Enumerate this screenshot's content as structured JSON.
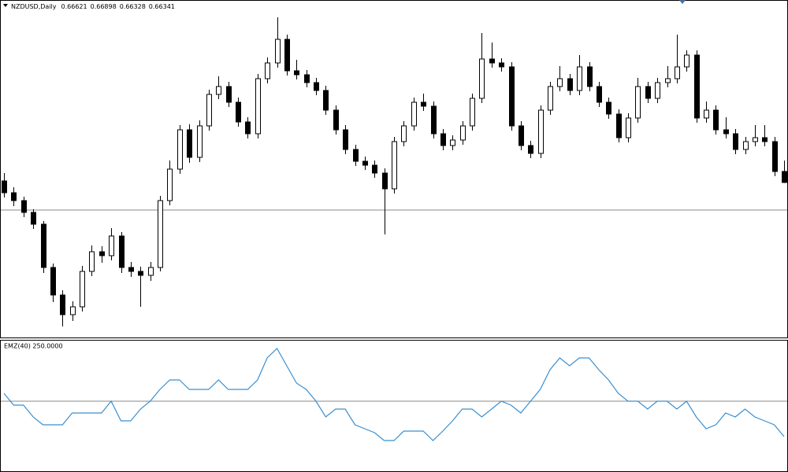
{
  "chart_data": [
    {
      "type": "candlestick",
      "title": "NZDUSD,Daily",
      "up_color": "#ffffff",
      "down_color": "#000000",
      "edge_color": "#000000",
      "ylim": [
        0.6238,
        0.707
      ],
      "hline": 0.6564,
      "ohlc": [
        [
          0.6638,
          0.6658,
          0.6596,
          0.6608
        ],
        [
          0.6608,
          0.6622,
          0.6574,
          0.6588
        ],
        [
          0.6588,
          0.6598,
          0.6546,
          0.6558
        ],
        [
          0.6558,
          0.6566,
          0.6516,
          0.6528
        ],
        [
          0.6528,
          0.6536,
          0.6404,
          0.6418
        ],
        [
          0.6418,
          0.6428,
          0.633,
          0.6348
        ],
        [
          0.6348,
          0.636,
          0.6268,
          0.6298
        ],
        [
          0.6298,
          0.6332,
          0.6282,
          0.6318
        ],
        [
          0.6318,
          0.6422,
          0.6306,
          0.6408
        ],
        [
          0.6408,
          0.6474,
          0.6396,
          0.6458
        ],
        [
          0.6458,
          0.6472,
          0.643,
          0.6448
        ],
        [
          0.6448,
          0.6518,
          0.6436,
          0.6498
        ],
        [
          0.6498,
          0.6508,
          0.6404,
          0.6418
        ],
        [
          0.6418,
          0.6432,
          0.6394,
          0.6408
        ],
        [
          0.6408,
          0.642,
          0.6318,
          0.6398
        ],
        [
          0.6398,
          0.6432,
          0.6384,
          0.6418
        ],
        [
          0.6418,
          0.66,
          0.6408,
          0.6588
        ],
        [
          0.6588,
          0.669,
          0.6576,
          0.6668
        ],
        [
          0.6668,
          0.678,
          0.6656,
          0.6768
        ],
        [
          0.6768,
          0.6782,
          0.6684,
          0.6698
        ],
        [
          0.6698,
          0.6792,
          0.6686,
          0.6778
        ],
        [
          0.6778,
          0.687,
          0.6766,
          0.6858
        ],
        [
          0.6858,
          0.6904,
          0.6846,
          0.6878
        ],
        [
          0.6878,
          0.689,
          0.6826,
          0.6838
        ],
        [
          0.6838,
          0.685,
          0.6776,
          0.6788
        ],
        [
          0.6788,
          0.68,
          0.6746,
          0.6758
        ],
        [
          0.6758,
          0.691,
          0.6746,
          0.6898
        ],
        [
          0.6898,
          0.6952,
          0.6886,
          0.6938
        ],
        [
          0.6938,
          0.7054,
          0.6926,
          0.6998
        ],
        [
          0.6998,
          0.701,
          0.6906,
          0.6918
        ],
        [
          0.6918,
          0.6946,
          0.6896,
          0.6908
        ],
        [
          0.6908,
          0.692,
          0.6876,
          0.6888
        ],
        [
          0.6888,
          0.69,
          0.6856,
          0.6868
        ],
        [
          0.6868,
          0.688,
          0.6806,
          0.6818
        ],
        [
          0.6818,
          0.683,
          0.6756,
          0.6768
        ],
        [
          0.6768,
          0.678,
          0.6706,
          0.6718
        ],
        [
          0.6718,
          0.673,
          0.6676,
          0.6688
        ],
        [
          0.6688,
          0.67,
          0.6666,
          0.6678
        ],
        [
          0.6678,
          0.669,
          0.6646,
          0.6658
        ],
        [
          0.6658,
          0.667,
          0.6502,
          0.6618
        ],
        [
          0.6618,
          0.675,
          0.6606,
          0.6738
        ],
        [
          0.6738,
          0.679,
          0.6726,
          0.6778
        ],
        [
          0.6778,
          0.685,
          0.6766,
          0.6838
        ],
        [
          0.6838,
          0.686,
          0.6816,
          0.6828
        ],
        [
          0.6828,
          0.684,
          0.6746,
          0.6758
        ],
        [
          0.6758,
          0.677,
          0.6716,
          0.6728
        ],
        [
          0.6728,
          0.6754,
          0.6716,
          0.6742
        ],
        [
          0.6742,
          0.679,
          0.673,
          0.6778
        ],
        [
          0.6778,
          0.686,
          0.6766,
          0.6848
        ],
        [
          0.6848,
          0.7014,
          0.6836,
          0.6948
        ],
        [
          0.6948,
          0.699,
          0.6926,
          0.6938
        ],
        [
          0.6938,
          0.695,
          0.6916,
          0.6928
        ],
        [
          0.6928,
          0.694,
          0.6766,
          0.6778
        ],
        [
          0.6778,
          0.679,
          0.6716,
          0.6728
        ],
        [
          0.6728,
          0.674,
          0.6696,
          0.6708
        ],
        [
          0.6708,
          0.683,
          0.6696,
          0.6818
        ],
        [
          0.6818,
          0.689,
          0.6806,
          0.6878
        ],
        [
          0.6878,
          0.693,
          0.6866,
          0.6898
        ],
        [
          0.6898,
          0.691,
          0.6856,
          0.6868
        ],
        [
          0.6868,
          0.6958,
          0.6856,
          0.6928
        ],
        [
          0.6928,
          0.694,
          0.6866,
          0.6878
        ],
        [
          0.6878,
          0.689,
          0.6826,
          0.6838
        ],
        [
          0.6838,
          0.685,
          0.6796,
          0.6808
        ],
        [
          0.6808,
          0.682,
          0.6736,
          0.6748
        ],
        [
          0.6748,
          0.681,
          0.6736,
          0.6798
        ],
        [
          0.6798,
          0.69,
          0.6786,
          0.6878
        ],
        [
          0.6878,
          0.689,
          0.6836,
          0.6848
        ],
        [
          0.6848,
          0.69,
          0.6836,
          0.6888
        ],
        [
          0.6888,
          0.693,
          0.6876,
          0.6898
        ],
        [
          0.6898,
          0.701,
          0.6886,
          0.6928
        ],
        [
          0.6928,
          0.697,
          0.6916,
          0.6958
        ],
        [
          0.6958,
          0.697,
          0.6786,
          0.6798
        ],
        [
          0.6798,
          0.684,
          0.6786,
          0.6818
        ],
        [
          0.6818,
          0.683,
          0.6756,
          0.6768
        ],
        [
          0.6768,
          0.68,
          0.6746,
          0.6758
        ],
        [
          0.6758,
          0.677,
          0.6706,
          0.6718
        ],
        [
          0.6718,
          0.675,
          0.6706,
          0.6738
        ],
        [
          0.6738,
          0.678,
          0.6726,
          0.6748
        ],
        [
          0.6748,
          0.678,
          0.6726,
          0.6738
        ],
        [
          0.6738,
          0.675,
          0.665,
          0.6662
        ],
        [
          0.66621,
          0.66898,
          0.66328,
          0.66341
        ]
      ]
    },
    {
      "type": "line",
      "title": "EMZ(40) 250.0000",
      "color": "#3a8fd0",
      "ylim": [
        -90,
        78
      ],
      "hline": 0,
      "values": [
        10,
        -5,
        -5,
        -20,
        -30,
        -30,
        -30,
        -15,
        -15,
        -15,
        -15,
        0,
        -25,
        -25,
        -10,
        0,
        15,
        27,
        27,
        15,
        15,
        15,
        27,
        15,
        15,
        15,
        27,
        55,
        67,
        45,
        23,
        15,
        0,
        -20,
        -10,
        -10,
        -30,
        -35,
        -40,
        -50,
        -50,
        -38,
        -38,
        -38,
        -50,
        -38,
        -25,
        -10,
        -10,
        -20,
        -10,
        0,
        -5,
        -15,
        0,
        15,
        40,
        55,
        45,
        55,
        55,
        40,
        27,
        10,
        0,
        0,
        -10,
        0,
        0,
        -10,
        0,
        -20,
        -35,
        -30,
        -15,
        -20,
        -10,
        -20,
        -25,
        -30,
        -45
      ]
    }
  ]
}
